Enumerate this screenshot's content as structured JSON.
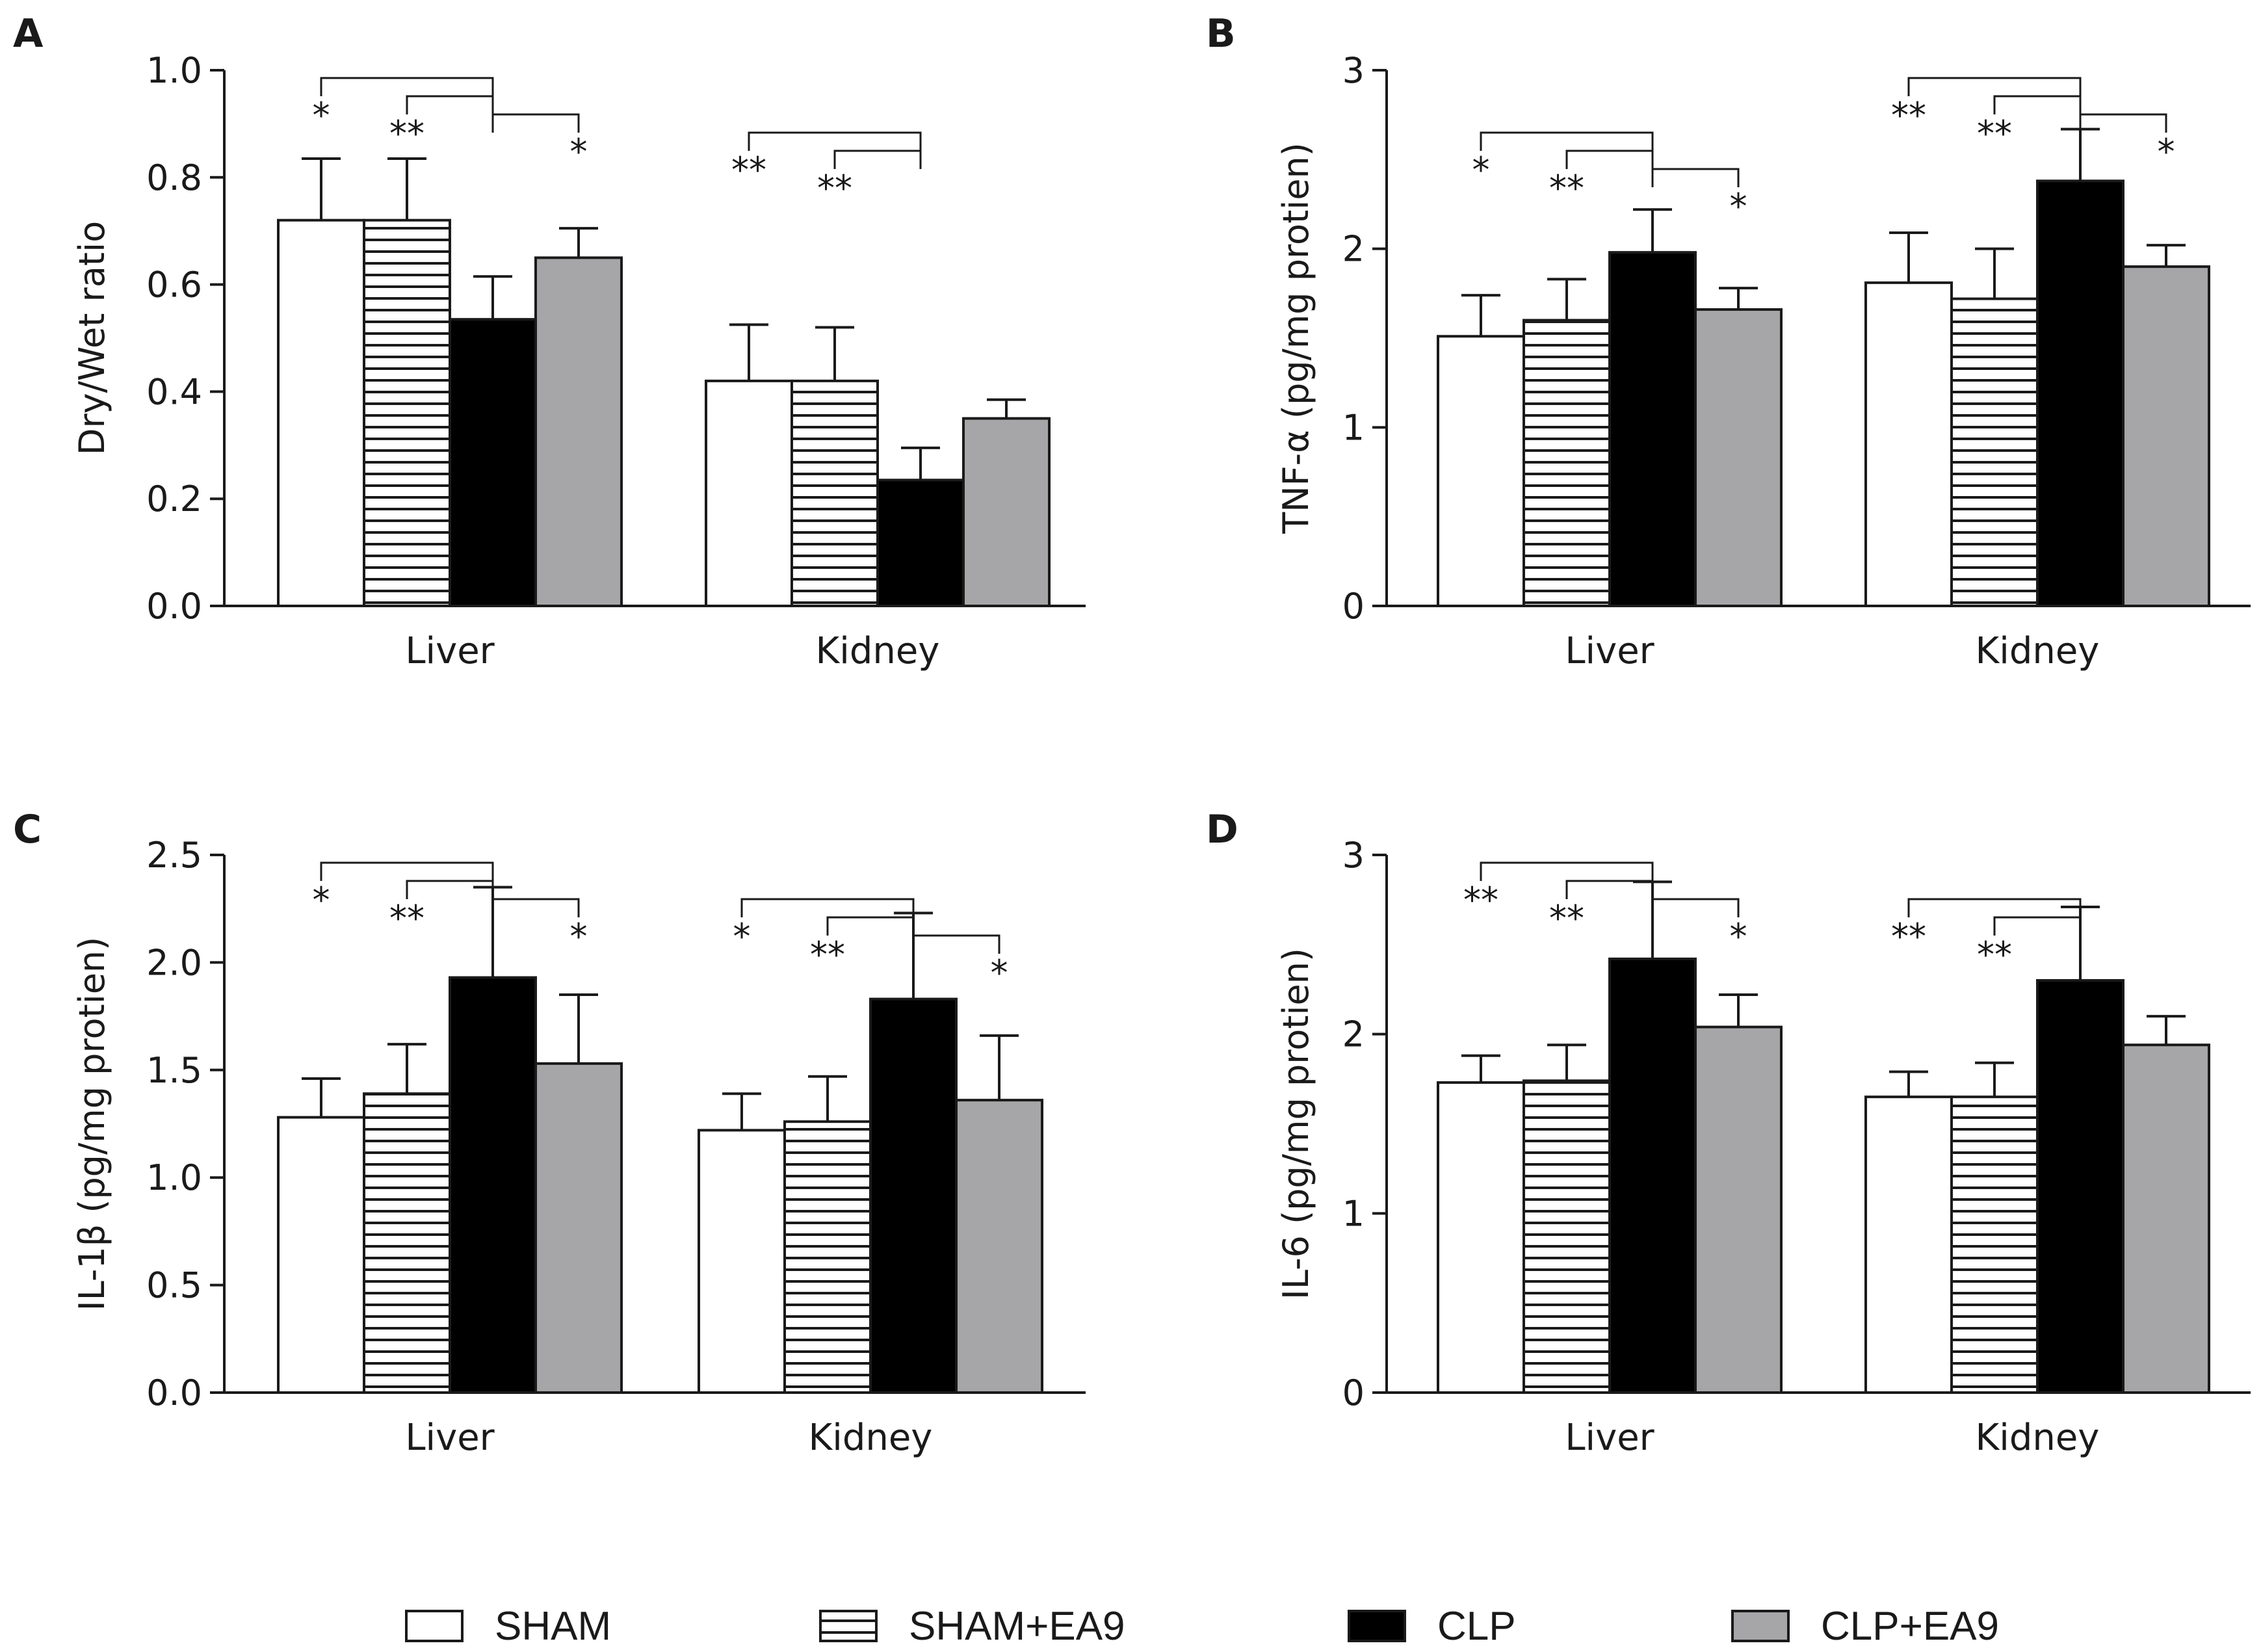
{
  "chart_data": [
    {
      "panel": "A",
      "type": "bar",
      "categories": [
        "Liver",
        "Kidney"
      ],
      "ylabel": "Dry/Wet ratio",
      "ylim": [
        0,
        1.0
      ],
      "yticks": [
        "0.0",
        "0.2",
        "0.4",
        "0.6",
        "0.8",
        "1.0"
      ],
      "series": [
        {
          "name": "SHAM",
          "values": [
            0.72,
            0.42
          ],
          "errors": [
            0.115,
            0.105
          ]
        },
        {
          "name": "SHAM+EA9",
          "values": [
            0.72,
            0.42
          ],
          "errors": [
            0.115,
            0.1
          ]
        },
        {
          "name": "CLP",
          "values": [
            0.535,
            0.235
          ],
          "errors": [
            0.08,
            0.06
          ]
        },
        {
          "name": "CLP+EA9",
          "values": [
            0.65,
            0.35
          ],
          "errors": [
            0.055,
            0.035
          ]
        }
      ],
      "comparisons": [
        {
          "category": 0,
          "series": 0,
          "label": "*"
        },
        {
          "category": 0,
          "series": 1,
          "label": "**"
        },
        {
          "category": 0,
          "series": 3,
          "label": "*"
        },
        {
          "category": 1,
          "series": 0,
          "label": "**"
        },
        {
          "category": 1,
          "series": 1,
          "label": "**"
        }
      ]
    },
    {
      "panel": "B",
      "type": "bar",
      "categories": [
        "Liver",
        "Kidney"
      ],
      "ylabel": "TNF-α (pg/mg protien)",
      "ylim": [
        0,
        3
      ],
      "yticks": [
        "0",
        "1",
        "2",
        "3"
      ],
      "series": [
        {
          "name": "SHAM",
          "values": [
            1.51,
            1.81
          ],
          "errors": [
            0.23,
            0.28
          ]
        },
        {
          "name": "SHAM+EA9",
          "values": [
            1.6,
            1.72
          ],
          "errors": [
            0.23,
            0.28
          ]
        },
        {
          "name": "CLP",
          "values": [
            1.98,
            2.38
          ],
          "errors": [
            0.24,
            0.29
          ]
        },
        {
          "name": "CLP+EA9",
          "values": [
            1.66,
            1.9
          ],
          "errors": [
            0.12,
            0.12
          ]
        }
      ],
      "comparisons": [
        {
          "category": 0,
          "series": 0,
          "label": "*"
        },
        {
          "category": 0,
          "series": 1,
          "label": "**"
        },
        {
          "category": 0,
          "series": 3,
          "label": "*"
        },
        {
          "category": 1,
          "series": 0,
          "label": "**"
        },
        {
          "category": 1,
          "series": 1,
          "label": "**"
        },
        {
          "category": 1,
          "series": 3,
          "label": "*"
        }
      ]
    },
    {
      "panel": "C",
      "type": "bar",
      "categories": [
        "Liver",
        "Kidney"
      ],
      "ylabel": "IL-1β (pg/mg protien)",
      "ylim": [
        0,
        2.5
      ],
      "yticks": [
        "0.0",
        "0.5",
        "1.0",
        "1.5",
        "2.0",
        "2.5"
      ],
      "series": [
        {
          "name": "SHAM",
          "values": [
            1.28,
            1.22
          ],
          "errors": [
            0.18,
            0.17
          ]
        },
        {
          "name": "SHAM+EA9",
          "values": [
            1.39,
            1.26
          ],
          "errors": [
            0.23,
            0.21
          ]
        },
        {
          "name": "CLP",
          "values": [
            1.93,
            1.83
          ],
          "errors": [
            0.42,
            0.4
          ]
        },
        {
          "name": "CLP+EA9",
          "values": [
            1.53,
            1.36
          ],
          "errors": [
            0.32,
            0.3
          ]
        }
      ],
      "comparisons": [
        {
          "category": 0,
          "series": 0,
          "label": "*"
        },
        {
          "category": 0,
          "series": 1,
          "label": "**"
        },
        {
          "category": 0,
          "series": 3,
          "label": "*"
        },
        {
          "category": 1,
          "series": 0,
          "label": "*"
        },
        {
          "category": 1,
          "series": 1,
          "label": "**"
        },
        {
          "category": 1,
          "series": 3,
          "label": "*"
        }
      ]
    },
    {
      "panel": "D",
      "type": "bar",
      "categories": [
        "Liver",
        "Kidney"
      ],
      "ylabel": "IL-6 (pg/mg protien)",
      "ylim": [
        0,
        3
      ],
      "yticks": [
        "0",
        "1",
        "2",
        "3"
      ],
      "series": [
        {
          "name": "SHAM",
          "values": [
            1.73,
            1.65
          ],
          "errors": [
            0.15,
            0.14
          ]
        },
        {
          "name": "SHAM+EA9",
          "values": [
            1.74,
            1.65
          ],
          "errors": [
            0.2,
            0.19
          ]
        },
        {
          "name": "CLP",
          "values": [
            2.42,
            2.3
          ],
          "errors": [
            0.43,
            0.41
          ]
        },
        {
          "name": "CLP+EA9",
          "values": [
            2.04,
            1.94
          ],
          "errors": [
            0.18,
            0.16
          ]
        }
      ],
      "comparisons": [
        {
          "category": 0,
          "series": 0,
          "label": "**"
        },
        {
          "category": 0,
          "series": 1,
          "label": "**"
        },
        {
          "category": 0,
          "series": 3,
          "label": "*"
        },
        {
          "category": 1,
          "series": 0,
          "label": "**"
        },
        {
          "category": 1,
          "series": 1,
          "label": "**"
        }
      ]
    }
  ],
  "legend": [
    {
      "name": "SHAM",
      "fill": "white"
    },
    {
      "name": "SHAM+EA9",
      "fill": "stripes"
    },
    {
      "name": "CLP",
      "fill": "black"
    },
    {
      "name": "CLP+EA9",
      "fill": "gray"
    }
  ],
  "colors": {
    "axis": "#1a1a1a",
    "clp": "#000000",
    "clp_ea9": "#a6a6a8",
    "sham": "#ffffff"
  }
}
